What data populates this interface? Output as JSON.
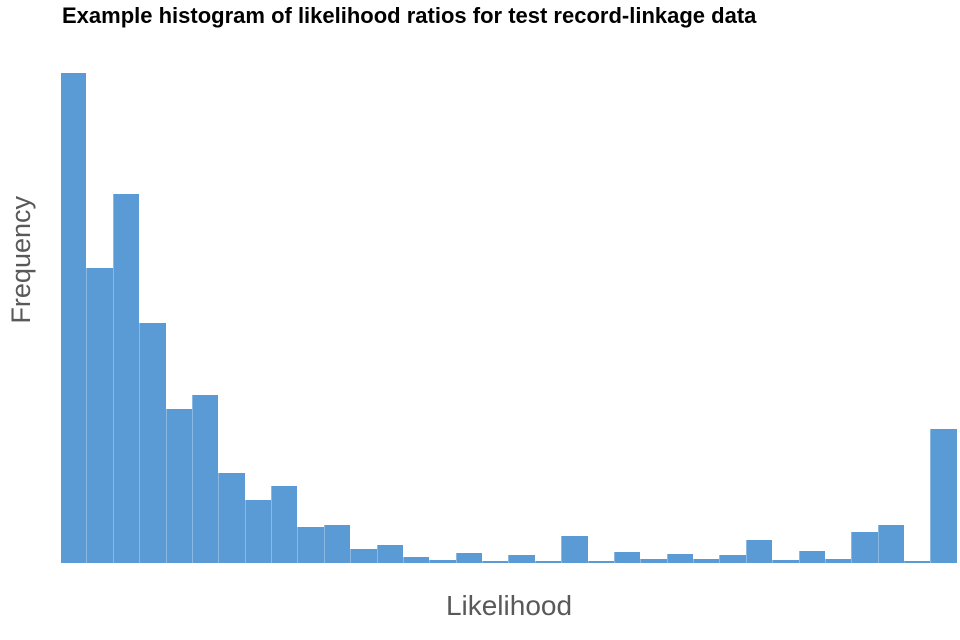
{
  "chart_data": {
    "type": "bar",
    "subtype": "histogram",
    "title": "Example histogram of likelihood ratios for test record-linkage data",
    "xlabel": "Likelihood",
    "ylabel": "Frequency",
    "n_bins": 34,
    "x_tick_labels": [],
    "y_tick_labels": [],
    "grid": false,
    "legend": "none",
    "value_units": "relative frequency (no numeric axis scale shown; values estimated in plot pixels)",
    "ylim": [
      0,
      500
    ],
    "values": [
      490,
      295,
      369,
      240,
      154,
      168,
      90,
      63,
      77,
      36,
      38,
      14,
      18,
      6,
      3,
      10,
      2,
      8,
      2,
      27,
      2,
      11,
      4,
      9,
      4,
      8,
      23,
      3,
      12,
      4,
      31,
      38,
      1,
      134
    ],
    "colors": {
      "bar_fill": "#5B9BD5",
      "baseline": "#5B9BD5",
      "title_text": "#000000",
      "axis_label_text": "#595959",
      "background": "#ffffff"
    }
  }
}
